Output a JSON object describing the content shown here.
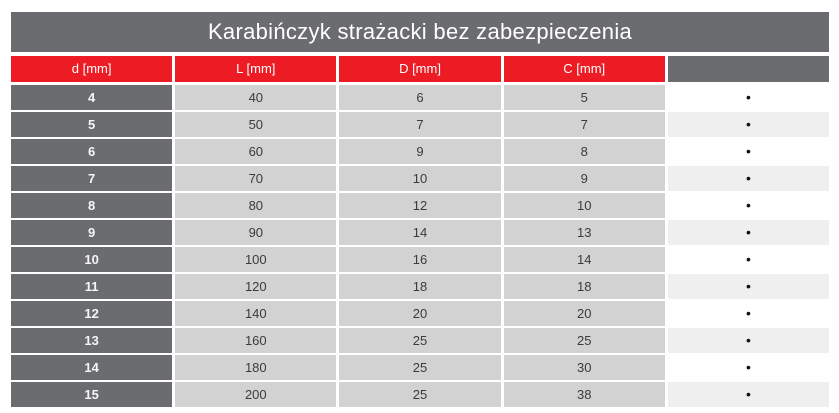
{
  "title": "Karabińczyk strażacki bez zabezpieczenia",
  "colors": {
    "title_bar": "#6b6c6f",
    "header_red": "#ed1c24",
    "first_column": "#6b6c6f",
    "data_cell": "#d2d2d3",
    "bullet_row_odd": "#ffffff",
    "bullet_row_even": "#efefef"
  },
  "table": {
    "columns": [
      "d [mm]",
      "L [mm]",
      "D [mm]",
      "C [mm]",
      ""
    ],
    "bullet_icon": "•",
    "rows": [
      [
        "4",
        "40",
        "6",
        "5",
        "•"
      ],
      [
        "5",
        "50",
        "7",
        "7",
        "•"
      ],
      [
        "6",
        "60",
        "9",
        "8",
        "•"
      ],
      [
        "7",
        "70",
        "10",
        "9",
        "•"
      ],
      [
        "8",
        "80",
        "12",
        "10",
        "•"
      ],
      [
        "9",
        "90",
        "14",
        "13",
        "•"
      ],
      [
        "10",
        "100",
        "16",
        "14",
        "•"
      ],
      [
        "11",
        "120",
        "18",
        "18",
        "•"
      ],
      [
        "12",
        "140",
        "20",
        "20",
        "•"
      ],
      [
        "13",
        "160",
        "25",
        "25",
        "•"
      ],
      [
        "14",
        "180",
        "25",
        "30",
        "•"
      ],
      [
        "15",
        "200",
        "25",
        "38",
        "•"
      ]
    ]
  }
}
